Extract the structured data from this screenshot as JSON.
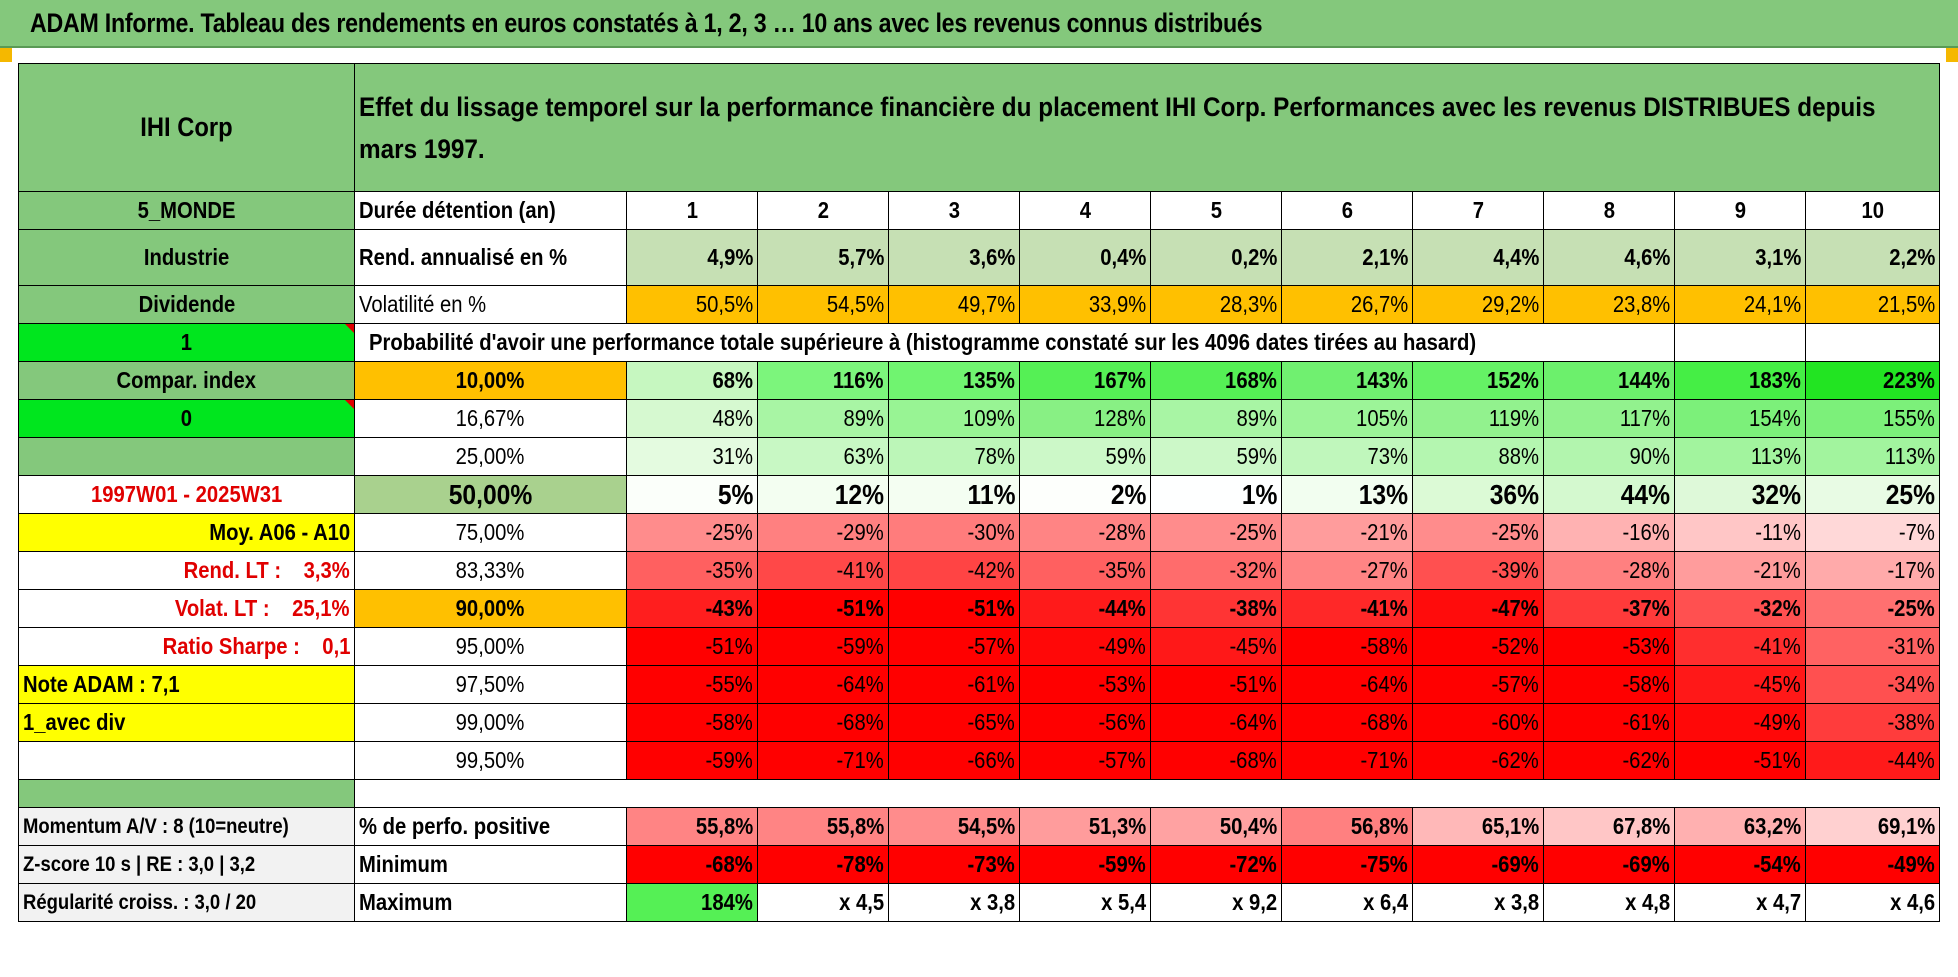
{
  "title": "ADAM Informe. Tableau des rendements en euros constatés à 1, 2, 3 … 10 ans avec les revenus connus distribués",
  "colors": {
    "header_green": "#84c87c",
    "bright_green": "#00e61e",
    "yellow": "#ffff00",
    "orange": "#ffc000",
    "red_text": "#e00000"
  },
  "left": {
    "name": "IHI Corp",
    "zone": "5_MONDE",
    "sector": "Industrie",
    "type": "Dividende",
    "flag1": "1",
    "compar": "Compar. index",
    "flag0": "0",
    "blank": "",
    "period": "1997W01 - 2025W31",
    "moy": "Moy. A06 - A10",
    "rend_lt": "Rend. LT :    3,3%",
    "volat_lt": "Volat. LT :    25,1%",
    "sharpe": "Ratio Sharpe :    0,1",
    "note": "Note ADAM : 7,1",
    "div": "1_avec div",
    "momentum": "Momentum A/V : 8 (10=neutre)",
    "zscore": "Z-score 10 s | RE : 3,0 | 3,2",
    "regularite": "Régularité croiss. : 3,0 / 20"
  },
  "description": "Effet du lissage temporel sur la performance financière du placement IHI Corp. Performances avec les revenus DISTRIBUES depuis mars 1997.",
  "durations_label": "Durée détention (an)",
  "durations": [
    "1",
    "2",
    "3",
    "4",
    "5",
    "6",
    "7",
    "8",
    "9",
    "10"
  ],
  "rend_label": "Rend. annualisé en %",
  "rend": [
    "4,9%",
    "5,7%",
    "3,6%",
    "0,4%",
    "0,2%",
    "2,1%",
    "4,4%",
    "4,6%",
    "3,1%",
    "2,2%"
  ],
  "vol_label": "Volatilité en %",
  "vol": [
    "50,5%",
    "54,5%",
    "49,7%",
    "33,9%",
    "28,3%",
    "26,7%",
    "29,2%",
    "23,8%",
    "24,1%",
    "21,5%"
  ],
  "prob_label": "Probabilité d'avoir une performance totale supérieure à (histogramme constaté sur les 4096 dates tirées au hasard)",
  "quantiles": [
    {
      "q": "10,00%",
      "vals": [
        "68%",
        "116%",
        "135%",
        "167%",
        "168%",
        "143%",
        "152%",
        "144%",
        "183%",
        "223%"
      ],
      "colors": [
        "#c6f7c0",
        "#7cf57c",
        "#70f470",
        "#55f055",
        "#55f055",
        "#70f070",
        "#65f265",
        "#6cf06c",
        "#45ee45",
        "#22e422"
      ]
    },
    {
      "q": "16,67%",
      "vals": [
        "48%",
        "89%",
        "109%",
        "128%",
        "89%",
        "105%",
        "119%",
        "117%",
        "154%",
        "155%"
      ],
      "colors": [
        "#d6f9d0",
        "#a8f5a4",
        "#98f494",
        "#88f084",
        "#a8f5a4",
        "#9cf498",
        "#92f28e",
        "#92f28e",
        "#7cf07a",
        "#7cf07a"
      ]
    },
    {
      "q": "25,00%",
      "vals": [
        "31%",
        "63%",
        "78%",
        "59%",
        "59%",
        "73%",
        "88%",
        "90%",
        "113%",
        "113%"
      ],
      "colors": [
        "#e4fbe0",
        "#c8f8c4",
        "#bcf6b8",
        "#ccf8c8",
        "#ccf8c8",
        "#c0f7bc",
        "#b4f6b0",
        "#b2f5ae",
        "#a2f49e",
        "#a2f49e"
      ]
    },
    {
      "q": "50,00%",
      "vals": [
        "5%",
        "12%",
        "11%",
        "2%",
        "1%",
        "13%",
        "36%",
        "44%",
        "32%",
        "25%"
      ],
      "colors": [
        "#fbfffa",
        "#f3fef1",
        "#f4fef2",
        "#fdfffc",
        "#feffff",
        "#f2fef0",
        "#dcfad6",
        "#d4f9cf",
        "#def9d9",
        "#e8fbe4"
      ]
    },
    {
      "q": "75,00%",
      "vals": [
        "-25%",
        "-29%",
        "-30%",
        "-28%",
        "-25%",
        "-21%",
        "-25%",
        "-16%",
        "-11%",
        "-7%"
      ],
      "colors": [
        "#ff8c8c",
        "#ff8080",
        "#ff7c7c",
        "#ff8484",
        "#ff8c8c",
        "#ff9c9c",
        "#ff8c8c",
        "#ffb2b2",
        "#ffc6c6",
        "#ffd8d8"
      ]
    },
    {
      "q": "83,33%",
      "vals": [
        "-35%",
        "-41%",
        "-42%",
        "-35%",
        "-32%",
        "-27%",
        "-39%",
        "-28%",
        "-21%",
        "-17%"
      ],
      "colors": [
        "#ff6060",
        "#ff4848",
        "#ff4444",
        "#ff6060",
        "#ff6c6c",
        "#ff8484",
        "#ff5050",
        "#ff8080",
        "#ff9c9c",
        "#ffaaaa"
      ]
    },
    {
      "q": "90,00%",
      "vals": [
        "-43%",
        "-51%",
        "-51%",
        "-44%",
        "-38%",
        "-41%",
        "-47%",
        "-37%",
        "-32%",
        "-25%"
      ],
      "colors": [
        "#ff1e1e",
        "#ff0000",
        "#ff0000",
        "#ff1a1a",
        "#ff3434",
        "#ff2828",
        "#ff0c0c",
        "#ff3a3a",
        "#ff5050",
        "#ff7070"
      ]
    },
    {
      "q": "95,00%",
      "vals": [
        "-51%",
        "-59%",
        "-57%",
        "-49%",
        "-45%",
        "-58%",
        "-52%",
        "-53%",
        "-41%",
        "-31%"
      ],
      "colors": [
        "#ff0000",
        "#ff0000",
        "#ff0000",
        "#ff0808",
        "#ff1818",
        "#ff0000",
        "#ff0000",
        "#ff0000",
        "#ff2e2e",
        "#ff6262"
      ]
    },
    {
      "q": "97,50%",
      "vals": [
        "-55%",
        "-64%",
        "-61%",
        "-53%",
        "-51%",
        "-64%",
        "-57%",
        "-58%",
        "-45%",
        "-34%"
      ],
      "colors": [
        "#ff0000",
        "#ff0000",
        "#ff0000",
        "#ff0000",
        "#ff0000",
        "#ff0000",
        "#ff0000",
        "#ff0000",
        "#ff1818",
        "#ff5050"
      ]
    },
    {
      "q": "99,00%",
      "vals": [
        "-58%",
        "-68%",
        "-65%",
        "-56%",
        "-64%",
        "-68%",
        "-60%",
        "-61%",
        "-49%",
        "-38%"
      ],
      "colors": [
        "#ff0000",
        "#ff0000",
        "#ff0000",
        "#ff0000",
        "#ff0000",
        "#ff0000",
        "#ff0000",
        "#ff0000",
        "#ff0808",
        "#ff3c3c"
      ]
    },
    {
      "q": "99,50%",
      "vals": [
        "-59%",
        "-71%",
        "-66%",
        "-57%",
        "-68%",
        "-71%",
        "-62%",
        "-62%",
        "-51%",
        "-44%"
      ],
      "colors": [
        "#ff0000",
        "#ff0000",
        "#ff0000",
        "#ff0000",
        "#ff0000",
        "#ff0000",
        "#ff0000",
        "#ff0000",
        "#ff0000",
        "#ff1a1a"
      ]
    }
  ],
  "pos_label": "% de perfo. positive",
  "pos": [
    "55,8%",
    "55,8%",
    "54,5%",
    "51,3%",
    "50,4%",
    "56,8%",
    "65,1%",
    "67,8%",
    "63,2%",
    "69,1%"
  ],
  "pos_colors": [
    "#ff8484",
    "#ff8484",
    "#ff8c8c",
    "#ff9c9c",
    "#ffa2a2",
    "#ff8080",
    "#ffb8b8",
    "#ffc6c6",
    "#ffb0b0",
    "#ffd0d0"
  ],
  "min_label": "Minimum",
  "min": [
    "-68%",
    "-78%",
    "-73%",
    "-59%",
    "-72%",
    "-75%",
    "-69%",
    "-69%",
    "-54%",
    "-49%"
  ],
  "max_label": "Maximum",
  "max": [
    "184%",
    "x 4,5",
    "x 3,8",
    "x 5,4",
    "x 9,2",
    "x 6,4",
    "x 3,8",
    "x 4,8",
    "x 4,7",
    "x 4,6"
  ]
}
